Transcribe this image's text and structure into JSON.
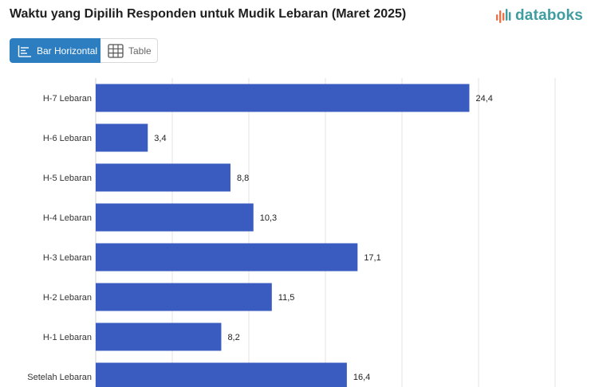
{
  "header": {
    "title": "Waktu yang Dipilih Responden untuk Mudik Lebaran (Maret 2025)",
    "brand": "databoks",
    "brand_color": "#3f9da1",
    "brand_icon": "databoks-bars-logo"
  },
  "view_toggle": {
    "bar_label": "Bar Horizontal",
    "bar_icon": "bar-chart-icon",
    "table_label": "Table",
    "table_icon": "table-grid-icon",
    "active": "Bar Horizontal",
    "active_color": "#2d7ec0"
  },
  "chart_data": {
    "type": "bar",
    "orientation": "horizontal",
    "title": "Waktu yang Dipilih Responden untuk Mudik Lebaran (Maret 2025)",
    "categories": [
      "H-7 Lebaran",
      "H-6 Lebaran",
      "H-5 Lebaran",
      "H-4 Lebaran",
      "H-3 Lebaran",
      "H-2 Lebaran",
      "H-1 Lebaran",
      "Setelah Lebaran"
    ],
    "values": [
      24.4,
      3.4,
      8.8,
      10.3,
      17.1,
      11.5,
      8.2,
      16.4
    ],
    "value_labels": [
      "24,4",
      "3,4",
      "8,8",
      "10,3",
      "17,1",
      "11,5",
      "8,2",
      "16,4"
    ],
    "bar_color": "#3a5bbf",
    "xlim": [
      0,
      30
    ],
    "grid": true,
    "legend": "none"
  }
}
